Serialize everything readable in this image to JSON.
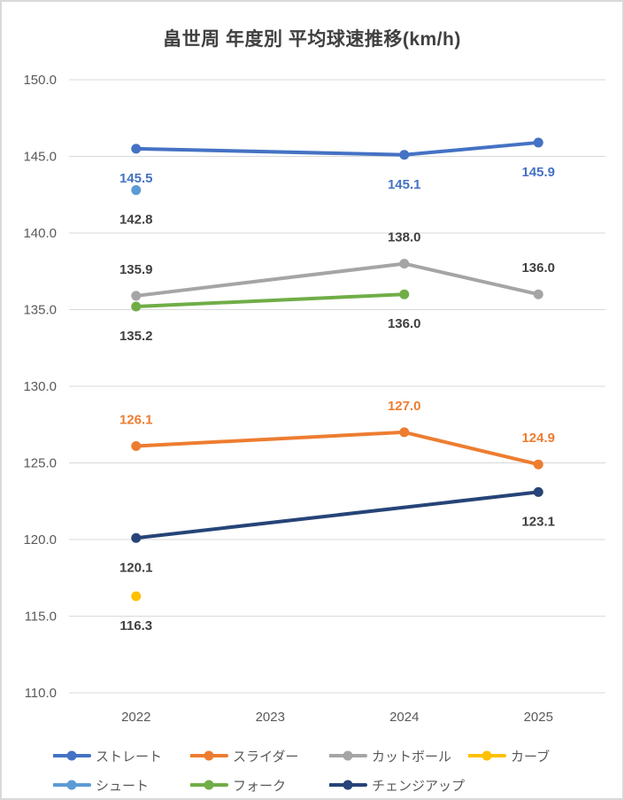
{
  "title": "畠世周 年度別 平均球速推移(km/h)",
  "chart_data": {
    "type": "line",
    "title": "畠世周 年度別 平均球速推移(km/h)",
    "categories": [
      "2022",
      "2023",
      "2024",
      "2025"
    ],
    "ylim": [
      110,
      150
    ],
    "ytick_step": 5,
    "ytick_format_decimals": 1,
    "grid": true,
    "gridline_color": "#D9D9D9",
    "axis_text_color": "#595959",
    "data_label_dark_color": "#404040",
    "legend_position": "bottom",
    "series": [
      {
        "id": "straight",
        "name": "ストレート",
        "color": "#4472C4",
        "label_color": "#4472C4",
        "label_side": "below",
        "values": [
          145.5,
          null,
          145.1,
          145.9
        ]
      },
      {
        "id": "slider",
        "name": "スライダー",
        "color": "#ED7D31",
        "label_color": "#ED7D31",
        "label_side": "above",
        "values": [
          126.1,
          null,
          127.0,
          124.9
        ]
      },
      {
        "id": "cutball",
        "name": "カットボール",
        "color": "#A5A5A5",
        "label_color": "#404040",
        "label_side": "above",
        "values": [
          135.9,
          null,
          138.0,
          136.0
        ]
      },
      {
        "id": "curve",
        "name": "カーブ",
        "color": "#FFC000",
        "label_color": "#404040",
        "label_side": "below",
        "values": [
          116.3,
          null,
          null,
          null
        ]
      },
      {
        "id": "shoot",
        "name": "シュート",
        "color": "#5B9BD5",
        "label_color": "#404040",
        "label_side": "below",
        "values": [
          142.8,
          null,
          null,
          null
        ]
      },
      {
        "id": "fork",
        "name": "フォーク",
        "color": "#70AD47",
        "label_color": "#404040",
        "label_side": "below",
        "values": [
          135.2,
          null,
          136.0,
          null
        ]
      },
      {
        "id": "changeup",
        "name": "チェンジアップ",
        "color": "#264478",
        "label_color": "#404040",
        "label_side": "below",
        "values": [
          120.1,
          null,
          null,
          123.1
        ]
      }
    ]
  }
}
